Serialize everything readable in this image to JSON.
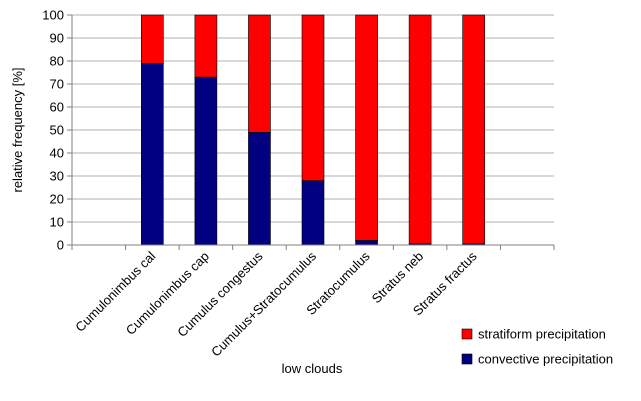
{
  "chart_data": {
    "type": "bar",
    "stacked": true,
    "title": "",
    "xlabel": "low clouds",
    "ylabel": "relative frequency [%]",
    "ylim": [
      0,
      100
    ],
    "ytick_step": 10,
    "y_ticks": [
      "0",
      "10",
      "20",
      "30",
      "40",
      "50",
      "60",
      "70",
      "80",
      "90",
      "100"
    ],
    "grid": true,
    "legend_position": "bottom-right",
    "categories": [
      "Cumulonimbus cal",
      "Cumulonimbus cap",
      "Cumulus congestus",
      "Cumulus+Stratocumulus",
      "Stratocumulus",
      "Stratus neb",
      "Stratus fractus"
    ],
    "series": [
      {
        "name": "convective precipitation",
        "color": "#000080",
        "values": [
          79,
          73,
          49,
          28,
          2,
          0.5,
          0.5
        ]
      },
      {
        "name": "stratiform precipitation",
        "color": "#ff0000",
        "values": [
          21,
          27,
          51,
          72,
          98,
          99.5,
          99.5
        ]
      }
    ],
    "legend_order": [
      "stratiform precipitation",
      "convective precipitation"
    ]
  }
}
